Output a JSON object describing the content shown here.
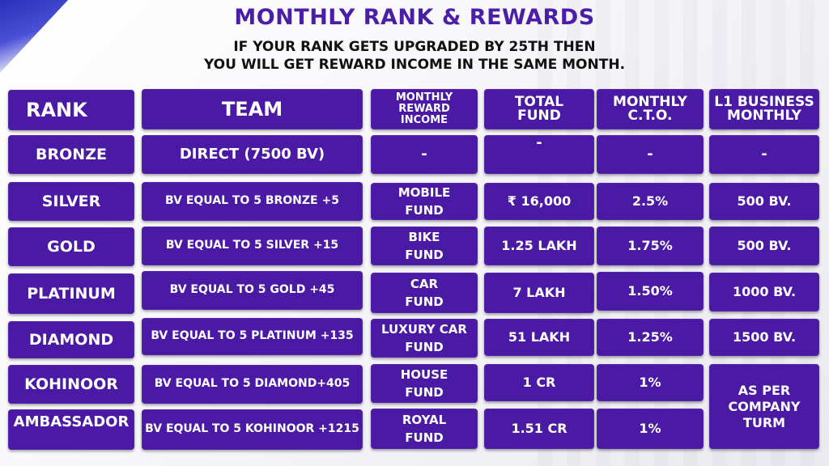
{
  "title": "MONTHLY RANK & REWARDS",
  "subtitle_line1": "IF YOUR RANK GETS UPGRADED BY 25TH THEN",
  "subtitle_line2": "YOU WILL GET REWARD INCOME IN THE SAME MONTH.",
  "colors": {
    "title": "#4b1ea8",
    "cell": "#4a1aa4",
    "text": "#ffffff"
  },
  "headers": {
    "rank": "RANK",
    "team": "TEAM",
    "reward_line1": "MONTHLY",
    "reward_line2": "REWARD",
    "reward_line3": "INCOME",
    "fund_line1": "TOTAL",
    "fund_line2": "FUND",
    "cto_line1": "MONTHLY",
    "cto_line2": "C.T.O.",
    "l1_line1": "L1 BUSINESS",
    "l1_line2": "MONTHLY"
  },
  "rows": [
    {
      "rank": "BRONZE",
      "team": "DIRECT (7500 BV)",
      "reward1": "-",
      "reward2": "",
      "fund": "-",
      "cto": "-",
      "l1": "-"
    },
    {
      "rank": "SILVER",
      "team": "BV EQUAL TO 5 BRONZE +5",
      "reward1": "MOBILE",
      "reward2": "FUND",
      "fund": "₹ 16,000",
      "cto": "2.5%",
      "l1": "500 BV."
    },
    {
      "rank": "GOLD",
      "team": "BV EQUAL TO 5 SILVER +15",
      "reward1": "BIKE",
      "reward2": "FUND",
      "fund": "1.25 LAKH",
      "cto": "1.75%",
      "l1": "500 BV."
    },
    {
      "rank": "PLATINUM",
      "team": "BV EQUAL TO 5 GOLD +45",
      "reward1": "CAR",
      "reward2": "FUND",
      "fund": "7 LAKH",
      "cto": "1.50%",
      "l1": "1000 BV."
    },
    {
      "rank": "DIAMOND",
      "team": "BV EQUAL TO 5 PLATINUM +135",
      "reward1": "LUXURY CAR",
      "reward2": "FUND",
      "fund": "51 LAKH",
      "cto": "1.25%",
      "l1": "1500 BV."
    },
    {
      "rank": "KOHINOOR",
      "team": "BV EQUAL TO 5 DIAMOND+405",
      "reward1": "HOUSE",
      "reward2": "FUND",
      "fund": "1 CR",
      "cto": "1%",
      "l1": ""
    },
    {
      "rank": "AMBASSADOR",
      "team": "BV EQUAL TO 5 KOHINOOR +1215",
      "reward1": "ROYAL",
      "reward2": "FUND",
      "fund": "1.51 CR",
      "cto": "1%",
      "l1": ""
    }
  ],
  "merged_l1_line1": "AS PER",
  "merged_l1_line2": "COMPANY",
  "merged_l1_line3": "TURM"
}
